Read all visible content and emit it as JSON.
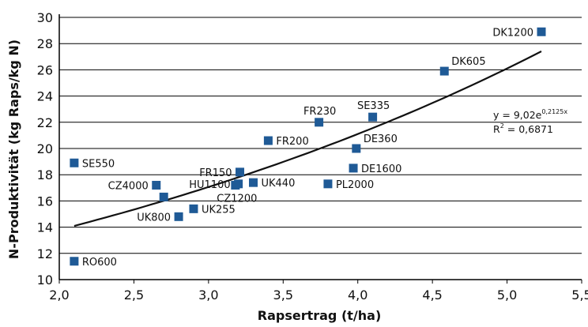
{
  "chart_data": {
    "type": "scatter",
    "xlabel": "Rapsertrag (t/ha)",
    "ylabel": "N-Produktivität (kg Raps/kg N)",
    "xlim": [
      2.0,
      5.5
    ],
    "ylim": [
      10,
      30
    ],
    "x_ticks": [
      2.0,
      2.5,
      3.0,
      3.5,
      4.0,
      4.5,
      5.0,
      5.5
    ],
    "x_tick_labels": [
      "2,0",
      "2,5",
      "3,0",
      "3,5",
      "4,0",
      "4,5",
      "5,0",
      "5,5"
    ],
    "y_ticks": [
      10,
      12,
      14,
      16,
      18,
      20,
      22,
      24,
      26,
      28,
      30
    ],
    "y_tick_labels": [
      "10",
      "12",
      "14",
      "16",
      "18",
      "20",
      "22",
      "24",
      "26",
      "28",
      "30"
    ],
    "grid": "horizontal",
    "marker_color": "#1f5a96",
    "points": [
      {
        "label": "DK1200",
        "x": 5.23,
        "y": 28.9,
        "label_side": "left"
      },
      {
        "label": "DK605",
        "x": 4.58,
        "y": 25.9,
        "label_side": "right-up"
      },
      {
        "label": "SE335",
        "x": 4.1,
        "y": 22.4,
        "label_side": "up"
      },
      {
        "label": "FR230",
        "x": 3.74,
        "y": 22.0,
        "label_side": "up"
      },
      {
        "label": "DE360",
        "x": 3.99,
        "y": 20.0,
        "label_side": "right-up"
      },
      {
        "label": "FR200",
        "x": 3.4,
        "y": 20.6,
        "label_side": "right"
      },
      {
        "label": "DE1600",
        "x": 3.97,
        "y": 18.5,
        "label_side": "right"
      },
      {
        "label": "SE550",
        "x": 2.1,
        "y": 18.9,
        "label_side": "right"
      },
      {
        "label": "FR150",
        "x": 3.21,
        "y": 18.2,
        "label_side": "left"
      },
      {
        "label": "PL2000",
        "x": 3.8,
        "y": 17.3,
        "label_side": "right"
      },
      {
        "label": "UK440",
        "x": 3.3,
        "y": 17.4,
        "label_side": "right"
      },
      {
        "label": "HU1100",
        "x": 3.2,
        "y": 17.3,
        "label_side": "left"
      },
      {
        "label": "CZ1200",
        "x": 3.18,
        "y": 17.2,
        "label_side": "below"
      },
      {
        "label": "CZ4000",
        "x": 2.65,
        "y": 17.2,
        "label_side": "left"
      },
      {
        "label": "",
        "x": 2.7,
        "y": 16.3,
        "label_side": "none"
      },
      {
        "label": "UK255",
        "x": 2.9,
        "y": 15.4,
        "label_side": "right"
      },
      {
        "label": "UK800",
        "x": 2.8,
        "y": 14.8,
        "label_side": "left"
      },
      {
        "label": "RO600",
        "x": 2.1,
        "y": 11.4,
        "label_side": "right"
      }
    ],
    "trendline": {
      "type": "exponential",
      "a": 9.02,
      "b": 0.2125,
      "x_range": [
        2.1,
        5.23
      ],
      "equation_main": "y = 9,02e",
      "equation_exp": "0,2125x",
      "r2_prefix": "R",
      "r2_sup": "2",
      "r2_value": " = 0,6871"
    }
  }
}
